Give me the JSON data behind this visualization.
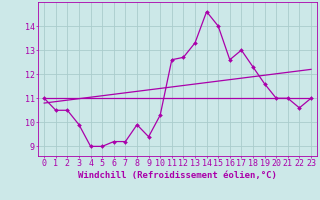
{
  "xlabel": "Windchill (Refroidissement éolien,°C)",
  "background_color": "#cce8e8",
  "grid_color": "#aacccc",
  "line_color": "#aa00aa",
  "hours": [
    0,
    1,
    2,
    3,
    4,
    5,
    6,
    7,
    8,
    9,
    10,
    11,
    12,
    13,
    14,
    15,
    16,
    17,
    18,
    19,
    20,
    21,
    22,
    23
  ],
  "values": [
    11.0,
    10.5,
    10.5,
    9.9,
    9.0,
    9.0,
    9.2,
    9.2,
    9.9,
    9.4,
    10.3,
    12.6,
    12.7,
    13.3,
    14.6,
    14.0,
    12.6,
    13.0,
    12.3,
    11.6,
    11.0,
    11.0,
    10.6,
    11.0
  ],
  "trend1_start": 11.0,
  "trend1_end": 11.0,
  "trend2_start": 10.8,
  "trend2_end": 12.2,
  "ylim": [
    8.6,
    15.0
  ],
  "xlim": [
    -0.5,
    23.5
  ],
  "yticks": [
    9,
    10,
    11,
    12,
    13,
    14
  ],
  "tick_fontsize": 6,
  "label_fontsize": 6.5
}
